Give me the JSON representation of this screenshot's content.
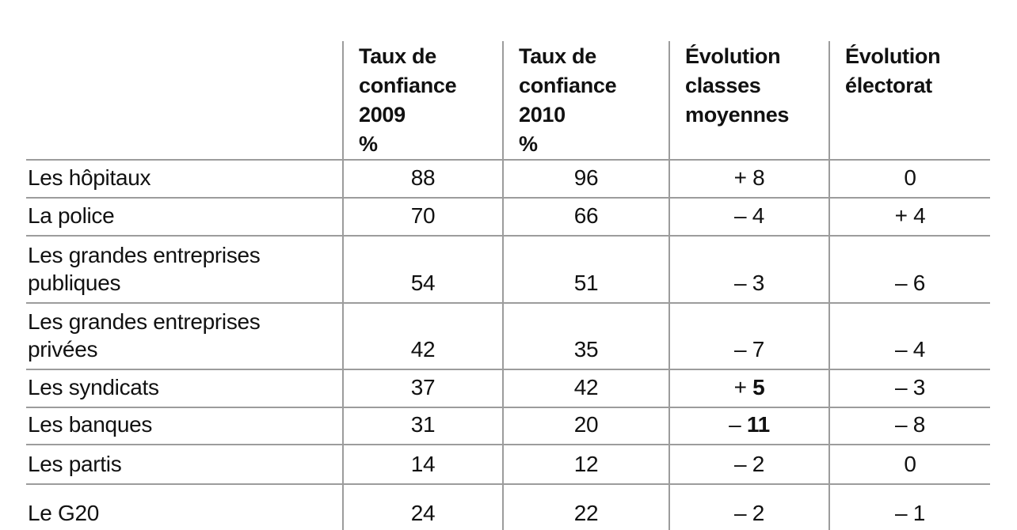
{
  "colors": {
    "grid_line": "#9c9c9c",
    "text": "#111111",
    "background": "#ffffff"
  },
  "chart_data": {
    "type": "table",
    "title": "",
    "columns": [
      {
        "id": "institution",
        "header": "",
        "header_display": ""
      },
      {
        "id": "taux-2009",
        "header": "Taux de confiance 2009 %",
        "header_display": "Taux de\nconfiance\n2009\n%"
      },
      {
        "id": "taux-2010",
        "header": "Taux de confiance 2010 %",
        "header_display": "Taux de\nconfiance\n2010\n%"
      },
      {
        "id": "evolution-classes",
        "header": "Évolution classes moyennes",
        "header_display": "Évolution\nclasses\nmoyennes"
      },
      {
        "id": "evolution-electorat",
        "header": "Évolution électorat",
        "header_display": "Évolution\nélectorat"
      }
    ],
    "rows": [
      {
        "cells": [
          "Les hôpitaux",
          "88",
          "96",
          "+ 8",
          "0"
        ],
        "bold_cells": []
      },
      {
        "cells": [
          "La police",
          "70",
          "66",
          "– 4",
          "+ 4"
        ],
        "bold_cells": []
      },
      {
        "cells": [
          "Les grandes entreprises\npubliques",
          "54",
          "51",
          "– 3",
          "– 6"
        ],
        "bold_cells": []
      },
      {
        "cells": [
          "Les grandes entreprises\nprivées",
          "42",
          "35",
          "– 7",
          "– 4"
        ],
        "bold_cells": []
      },
      {
        "cells": [
          "Les syndicats",
          "37",
          "42",
          "+ 5",
          "– 3"
        ],
        "bold_cells": [
          3
        ]
      },
      {
        "cells": [
          "Les banques",
          "31",
          "20",
          "– 11",
          "– 8"
        ],
        "bold_cells": [
          3
        ]
      },
      {
        "cells": [
          "Les partis",
          "14",
          "12",
          "– 2",
          "0"
        ],
        "bold_cells": []
      },
      {
        "cells": [
          "Le G20",
          "24",
          "22",
          "– 2",
          "– 1"
        ],
        "bold_cells": []
      }
    ],
    "layout": {
      "grid": "horizontal and vertical rules, no outer right border, last row clipped at bottom edge",
      "legend": "none"
    }
  }
}
